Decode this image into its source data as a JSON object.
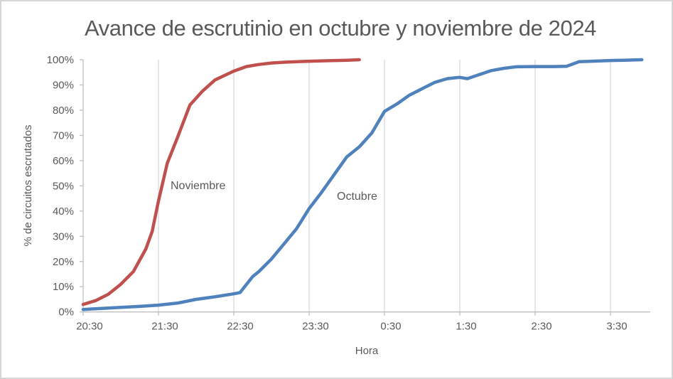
{
  "title": "Avance de escrutinio en octubre y noviembre de 2024",
  "chart_data": {
    "type": "line",
    "title": "Avance de escrutinio en octubre y noviembre de 2024",
    "xlabel": "Hora",
    "ylabel": "% de circuitos escrutados",
    "x_tick_labels": [
      "20:30",
      "21:30",
      "22:30",
      "23:30",
      "0:30",
      "1:30",
      "2:30",
      "3:30"
    ],
    "y_tick_labels": [
      "0%",
      "10%",
      "20%",
      "30%",
      "40%",
      "50%",
      "60%",
      "70%",
      "80%",
      "90%",
      "100%"
    ],
    "ylim": [
      0,
      100
    ],
    "x_axis_start": "20:30",
    "x_axis_end": "4:00",
    "grid": "vertical-major-gridlines-only",
    "legend": "inline-series-labels",
    "series": [
      {
        "name": "Noviembre",
        "color": "#C0504D",
        "points": [
          [
            "20:30",
            3
          ],
          [
            "20:40",
            4.5
          ],
          [
            "20:50",
            7
          ],
          [
            "21:00",
            11
          ],
          [
            "21:10",
            16
          ],
          [
            "21:20",
            25
          ],
          [
            "21:25",
            32
          ],
          [
            "21:30",
            44
          ],
          [
            "21:37",
            59
          ],
          [
            "21:45",
            69
          ],
          [
            "21:55",
            82
          ],
          [
            "22:05",
            87.5
          ],
          [
            "22:15",
            92
          ],
          [
            "22:30",
            95.5
          ],
          [
            "22:40",
            97.3
          ],
          [
            "22:50",
            98.1
          ],
          [
            "23:00",
            98.7
          ],
          [
            "23:10",
            99
          ],
          [
            "23:20",
            99.2
          ],
          [
            "23:30",
            99.4
          ],
          [
            "23:45",
            99.6
          ],
          [
            "0:00",
            99.8
          ],
          [
            "0:10",
            100
          ]
        ]
      },
      {
        "name": "Octubre",
        "color": "#4F81BD",
        "points": [
          [
            "20:30",
            1
          ],
          [
            "20:45",
            1.4
          ],
          [
            "21:00",
            1.8
          ],
          [
            "21:15",
            2.2
          ],
          [
            "21:30",
            2.7
          ],
          [
            "21:45",
            3.5
          ],
          [
            "22:00",
            5
          ],
          [
            "22:15",
            6
          ],
          [
            "22:30",
            7.2
          ],
          [
            "22:35",
            7.7
          ],
          [
            "22:45",
            14
          ],
          [
            "22:50",
            16
          ],
          [
            "23:00",
            21
          ],
          [
            "23:10",
            27
          ],
          [
            "23:20",
            33
          ],
          [
            "23:30",
            41
          ],
          [
            "23:40",
            47.5
          ],
          [
            "23:50",
            54.5
          ],
          [
            "0:00",
            61.5
          ],
          [
            "0:10",
            65.5
          ],
          [
            "0:20",
            71
          ],
          [
            "0:30",
            79.5
          ],
          [
            "0:40",
            82.5
          ],
          [
            "0:50",
            86
          ],
          [
            "1:00",
            88.5
          ],
          [
            "1:10",
            91
          ],
          [
            "1:20",
            92.5
          ],
          [
            "1:30",
            93
          ],
          [
            "1:36",
            92.5
          ],
          [
            "1:45",
            94
          ],
          [
            "1:55",
            95.7
          ],
          [
            "2:05",
            96.6
          ],
          [
            "2:15",
            97.2
          ],
          [
            "2:30",
            97.3
          ],
          [
            "2:45",
            97.3
          ],
          [
            "2:55",
            97.4
          ],
          [
            "3:05",
            99.2
          ],
          [
            "3:15",
            99.4
          ],
          [
            "3:30",
            99.7
          ],
          [
            "3:40",
            99.8
          ],
          [
            "3:55",
            100
          ]
        ]
      }
    ]
  },
  "colors": {
    "background": "#FFFFFF",
    "border": "#D6D6D6",
    "axis_line": "#BFBFBF",
    "gridline": "#D9D9D9",
    "text": "#595959",
    "noviembre_line": "#C0504D",
    "octubre_line": "#4F81BD"
  }
}
